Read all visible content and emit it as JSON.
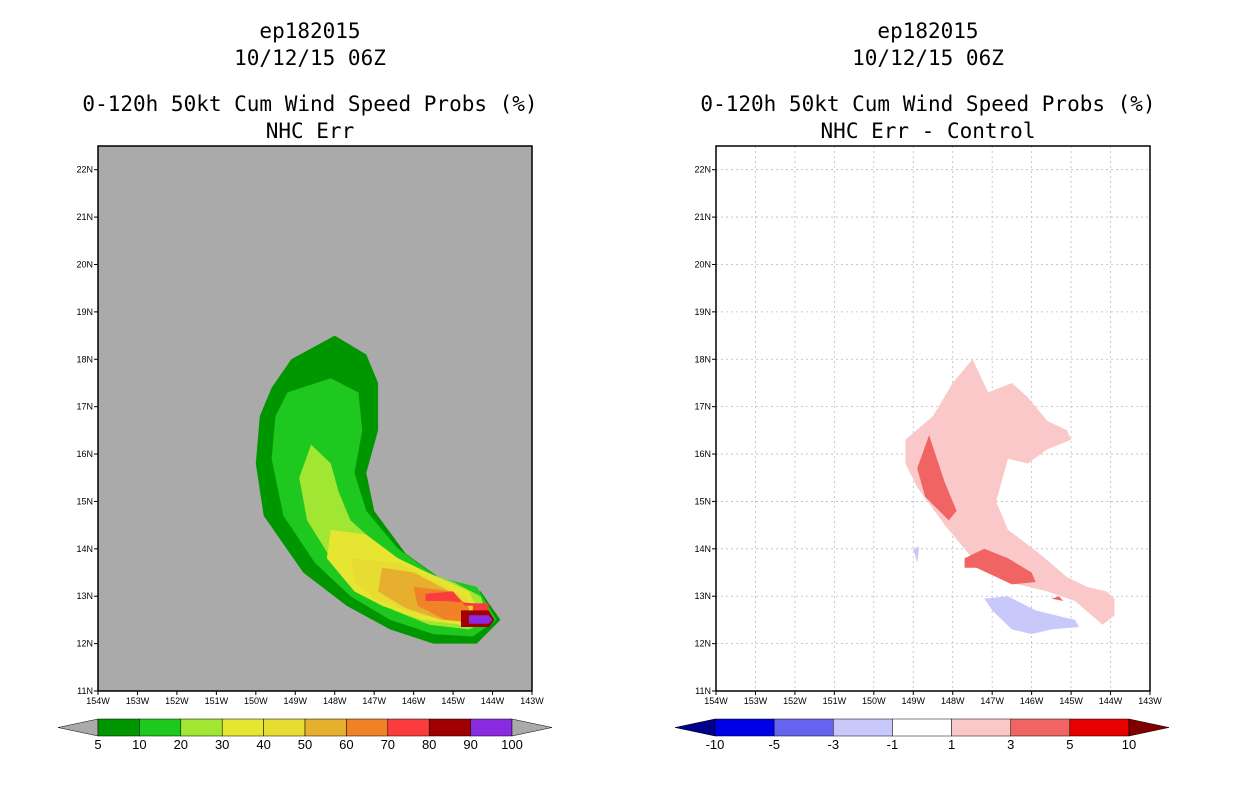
{
  "chart_data": [
    {
      "type": "heatmap",
      "storm_id": "ep182015",
      "datetime": "10/12/15 06Z",
      "title": "0-120h 50kt Cum Wind Speed Probs (%)",
      "subtitle": "NHC Err",
      "xlabel": "",
      "ylabel": "",
      "x_ticks": [
        "154W",
        "153W",
        "152W",
        "151W",
        "150W",
        "149W",
        "148W",
        "147W",
        "146W",
        "145W",
        "144W",
        "143W"
      ],
      "y_ticks": [
        "11N",
        "12N",
        "13N",
        "14N",
        "15N",
        "16N",
        "17N",
        "18N",
        "19N",
        "20N",
        "21N",
        "22N"
      ],
      "xlim": [
        -154,
        -143
      ],
      "ylim": [
        11,
        22.5
      ],
      "grid": false,
      "background_color": "#aaaaaa",
      "colorbar": {
        "labels": [
          "5",
          "10",
          "20",
          "30",
          "40",
          "50",
          "60",
          "70",
          "80",
          "90",
          "100"
        ],
        "colors": [
          "#009600",
          "#1ec81e",
          "#a0e632",
          "#e6e632",
          "#e6dc32",
          "#e6af2d",
          "#f08228",
          "#fa3c3c",
          "#a00000",
          "#8a2be2"
        ],
        "end_colors": [
          "#aaaaaa",
          "#aaaaaa"
        ]
      },
      "contours": [
        {
          "min": 5,
          "color": "#009600",
          "points": [
            [
              -149.1,
              18
            ],
            [
              -148,
              18.5
            ],
            [
              -147.2,
              18.1
            ],
            [
              -146.9,
              17.5
            ],
            [
              -146.9,
              16.5
            ],
            [
              -147.2,
              15.6
            ],
            [
              -147,
              14.8
            ],
            [
              -146.2,
              13.9
            ],
            [
              -145.2,
              13.3
            ],
            [
              -144.3,
              13.1
            ],
            [
              -143.8,
              12.5
            ],
            [
              -144.4,
              12
            ],
            [
              -145.5,
              12
            ],
            [
              -146.6,
              12.3
            ],
            [
              -147.7,
              12.8
            ],
            [
              -148.8,
              13.5
            ],
            [
              -149.8,
              14.7
            ],
            [
              -150,
              15.8
            ],
            [
              -149.9,
              16.8
            ],
            [
              -149.6,
              17.4
            ]
          ]
        },
        {
          "min": 10,
          "color": "#1ec81e",
          "points": [
            [
              -149.2,
              17.3
            ],
            [
              -148.1,
              17.6
            ],
            [
              -147.4,
              17.3
            ],
            [
              -147.3,
              16.5
            ],
            [
              -147.5,
              15.6
            ],
            [
              -147.2,
              14.8
            ],
            [
              -146.4,
              14
            ],
            [
              -145.4,
              13.4
            ],
            [
              -144.4,
              13.2
            ],
            [
              -143.9,
              12.5
            ],
            [
              -144.5,
              12.15
            ],
            [
              -145.5,
              12.2
            ],
            [
              -146.6,
              12.5
            ],
            [
              -147.6,
              13
            ],
            [
              -148.5,
              13.7
            ],
            [
              -149.3,
              14.7
            ],
            [
              -149.6,
              15.9
            ],
            [
              -149.5,
              16.8
            ]
          ]
        },
        {
          "min": 20,
          "color": "#a0e632",
          "points": [
            [
              -148.6,
              16.2
            ],
            [
              -148.1,
              15.8
            ],
            [
              -147.9,
              15.2
            ],
            [
              -147.6,
              14.6
            ],
            [
              -146.8,
              14
            ],
            [
              -146,
              13.6
            ],
            [
              -145,
              13.3
            ],
            [
              -144.3,
              13
            ],
            [
              -144.1,
              12.5
            ],
            [
              -144.6,
              12.3
            ],
            [
              -145.6,
              12.4
            ],
            [
              -146.5,
              12.7
            ],
            [
              -147.4,
              13.2
            ],
            [
              -148.1,
              13.8
            ],
            [
              -148.7,
              14.6
            ],
            [
              -148.9,
              15.5
            ]
          ]
        },
        {
          "min": 30,
          "color": "#e6e632",
          "points": [
            [
              -148.1,
              14.4
            ],
            [
              -147.2,
              14.3
            ],
            [
              -146.4,
              13.8
            ],
            [
              -145.4,
              13.4
            ],
            [
              -144.6,
              13.1
            ],
            [
              -144.3,
              12.6
            ],
            [
              -144.8,
              12.4
            ],
            [
              -145.8,
              12.5
            ],
            [
              -146.8,
              12.8
            ],
            [
              -147.5,
              13.1
            ],
            [
              -148.2,
              13.8
            ]
          ]
        },
        {
          "min": 40,
          "color": "#e6dc32",
          "points": [
            [
              -147.6,
              13.8
            ],
            [
              -146.4,
              13.7
            ],
            [
              -145.4,
              13.3
            ],
            [
              -144.7,
              13.0
            ],
            [
              -144.4,
              12.6
            ],
            [
              -144.8,
              12.45
            ],
            [
              -145.8,
              12.6
            ],
            [
              -146.9,
              12.9
            ],
            [
              -147.5,
              13.3
            ]
          ]
        },
        {
          "min": 50,
          "color": "#e6af2d",
          "points": [
            [
              -146.8,
              13.6
            ],
            [
              -146,
              13.5
            ],
            [
              -145.2,
              13.15
            ],
            [
              -144.6,
              12.8
            ],
            [
              -144.6,
              12.5
            ],
            [
              -145.3,
              12.5
            ],
            [
              -146.2,
              12.75
            ],
            [
              -146.9,
              13.1
            ]
          ]
        },
        {
          "min": 60,
          "color": "#f08228",
          "points": [
            [
              -146,
              13.2
            ],
            [
              -145,
              13.1
            ],
            [
              -144.6,
              12.75
            ],
            [
              -144.6,
              12.45
            ],
            [
              -145.2,
              12.5
            ],
            [
              -145.9,
              12.8
            ]
          ]
        },
        {
          "min": 70,
          "color": "#fa3c3c",
          "points": [
            [
              -145.7,
              13.05
            ],
            [
              -145,
              13.1
            ],
            [
              -144.7,
              12.8
            ],
            [
              -144.5,
              12.8
            ],
            [
              -144.5,
              12.4
            ],
            [
              -144.1,
              12.4
            ],
            [
              -144.1,
              12.85
            ],
            [
              -144.5,
              12.85
            ],
            [
              -145.2,
              12.9
            ],
            [
              -145.7,
              12.9
            ]
          ]
        },
        {
          "min": 80,
          "color": "#a00000",
          "points": [
            [
              -144.8,
              12.7
            ],
            [
              -144.1,
              12.7
            ],
            [
              -143.95,
              12.5
            ],
            [
              -144.1,
              12.35
            ],
            [
              -144.8,
              12.35
            ]
          ]
        },
        {
          "min": 90,
          "color": "#8a2be2",
          "points": [
            [
              -144.6,
              12.6
            ],
            [
              -144.1,
              12.6
            ],
            [
              -144.0,
              12.5
            ],
            [
              -144.1,
              12.42
            ],
            [
              -144.6,
              12.42
            ]
          ]
        }
      ]
    },
    {
      "type": "heatmap",
      "storm_id": "ep182015",
      "datetime": "10/12/15 06Z",
      "title": "0-120h 50kt Cum Wind Speed Probs (%)",
      "subtitle": "NHC Err - Control",
      "xlabel": "",
      "ylabel": "",
      "x_ticks": [
        "154W",
        "153W",
        "152W",
        "151W",
        "150W",
        "149W",
        "148W",
        "147W",
        "146W",
        "145W",
        "144W",
        "143W"
      ],
      "y_ticks": [
        "11N",
        "12N",
        "13N",
        "14N",
        "15N",
        "16N",
        "17N",
        "18N",
        "19N",
        "20N",
        "21N",
        "22N"
      ],
      "xlim": [
        -154,
        -143
      ],
      "ylim": [
        11,
        22.5
      ],
      "grid": true,
      "background_color": "#ffffff",
      "colorbar": {
        "labels": [
          "-10",
          "-5",
          "-3",
          "-1",
          "1",
          "3",
          "5",
          "10"
        ],
        "colors": [
          "#0000e6",
          "#6464f0",
          "#c8c8fa",
          "#ffffff",
          "#fac8c8",
          "#f06464",
          "#e60000"
        ],
        "end_colors": [
          "#00008b",
          "#800000"
        ]
      },
      "contours": [
        {
          "min": 1,
          "color": "#fac8c8",
          "points": [
            [
              -148.5,
              16.8
            ],
            [
              -148,
              17.5
            ],
            [
              -147.5,
              18
            ],
            [
              -147.1,
              17.3
            ],
            [
              -146.5,
              17.5
            ],
            [
              -146.1,
              17.2
            ],
            [
              -145.6,
              16.7
            ],
            [
              -145.1,
              16.5
            ],
            [
              -145,
              16.3
            ],
            [
              -145.6,
              16.1
            ],
            [
              -146.1,
              15.8
            ],
            [
              -146.6,
              15.9
            ],
            [
              -146.9,
              15
            ],
            [
              -146.6,
              14.4
            ],
            [
              -145.8,
              13.9
            ],
            [
              -145.1,
              13.4
            ],
            [
              -144.6,
              13.2
            ],
            [
              -144.1,
              13.1
            ],
            [
              -143.9,
              12.95
            ],
            [
              -143.9,
              12.6
            ],
            [
              -144.2,
              12.4
            ],
            [
              -144.9,
              12.9
            ],
            [
              -145.6,
              13.1
            ],
            [
              -146.6,
              13.3
            ],
            [
              -147.4,
              13.7
            ],
            [
              -148.2,
              14.5
            ],
            [
              -148.9,
              15.3
            ],
            [
              -149.2,
              15.8
            ],
            [
              -149.2,
              16.3
            ]
          ]
        },
        {
          "min": 3,
          "color": "#f06464",
          "points": [
            [
              -148.6,
              16.4
            ],
            [
              -148.2,
              15.4
            ],
            [
              -147.9,
              14.8
            ],
            [
              -148.1,
              14.6
            ],
            [
              -148.7,
              15.1
            ],
            [
              -148.9,
              15.7
            ]
          ]
        },
        {
          "min": 3,
          "color": "#f06464",
          "points": [
            [
              -147.7,
              13.8
            ],
            [
              -147.2,
              14.0
            ],
            [
              -146.6,
              13.8
            ],
            [
              -146,
              13.5
            ],
            [
              -145.9,
              13.3
            ],
            [
              -146.5,
              13.25
            ],
            [
              -147.4,
              13.6
            ],
            [
              -147.7,
              13.6
            ]
          ]
        },
        {
          "min": 3,
          "color": "#f06464",
          "points": [
            [
              -145.5,
              12.95
            ],
            [
              -145.3,
              13.0
            ],
            [
              -145.2,
              12.9
            ]
          ]
        },
        {
          "max": -1,
          "color": "#c8c8fa",
          "points": [
            [
              -147.2,
              12.95
            ],
            [
              -146.6,
              13.0
            ],
            [
              -145.9,
              12.7
            ],
            [
              -145.4,
              12.6
            ],
            [
              -144.9,
              12.5
            ],
            [
              -144.8,
              12.35
            ],
            [
              -145.5,
              12.3
            ],
            [
              -146,
              12.2
            ],
            [
              -146.5,
              12.3
            ],
            [
              -147,
              12.7
            ]
          ]
        },
        {
          "max": -1,
          "color": "#c8c8fa",
          "points": [
            [
              -149.0,
              14.0
            ],
            [
              -148.85,
              14.05
            ],
            [
              -148.9,
              13.7
            ]
          ]
        }
      ]
    }
  ]
}
